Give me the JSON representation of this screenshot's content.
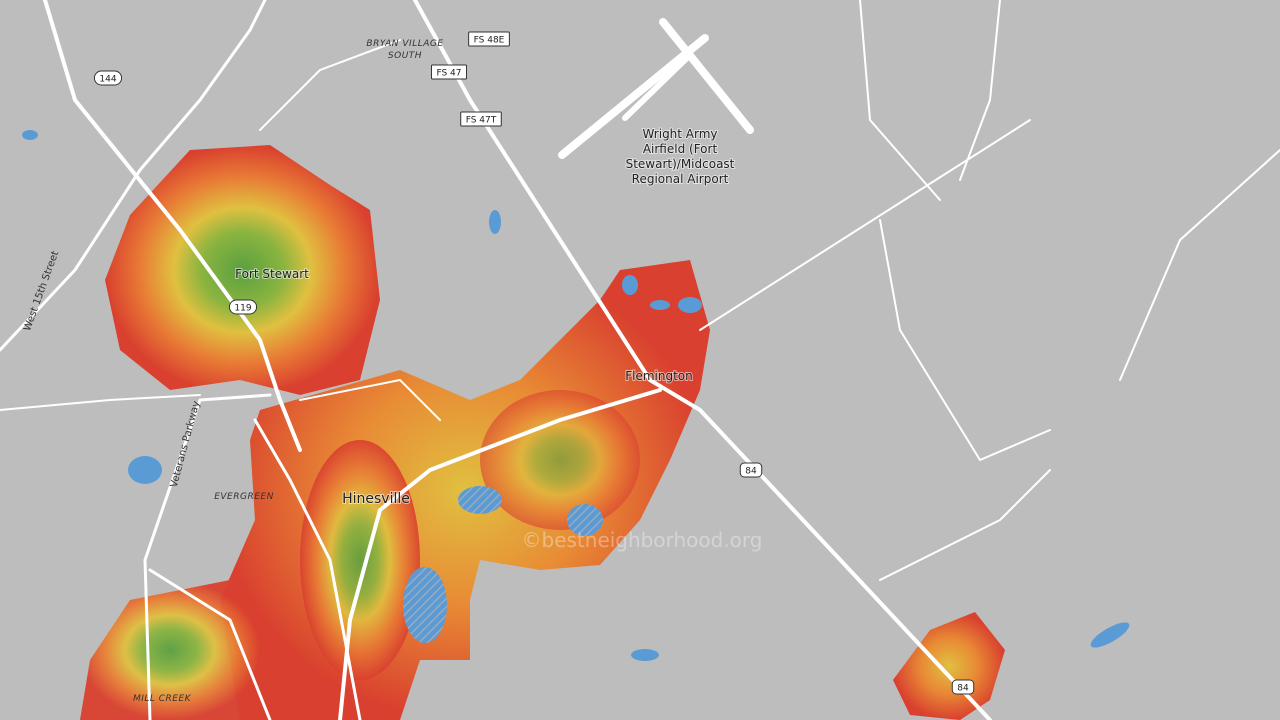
{
  "map": {
    "places": [
      {
        "lines": [
          "Fort Stewart"
        ]
      },
      {
        "lines": [
          "Flemington"
        ]
      },
      {
        "lines": [
          "Hinesville"
        ]
      },
      {
        "lines": [
          "Wright Army",
          "Airfield (Fort",
          "Stewart)/Midcoast",
          "Regional Airport"
        ]
      }
    ],
    "neighborhoods": [
      {
        "lines": [
          "BRYAN VILLAGE",
          "SOUTH"
        ]
      },
      {
        "lines": [
          "EVERGREEN"
        ]
      },
      {
        "lines": [
          "MILL CREEK"
        ]
      }
    ],
    "road_labels": [
      "West 15th Street",
      "Veterans Parkway"
    ],
    "shields": [
      "FS 48E",
      "FS 47",
      "FS 47T",
      "144",
      "119",
      "84",
      "84"
    ],
    "watermark": "©bestneighborhood.org"
  }
}
